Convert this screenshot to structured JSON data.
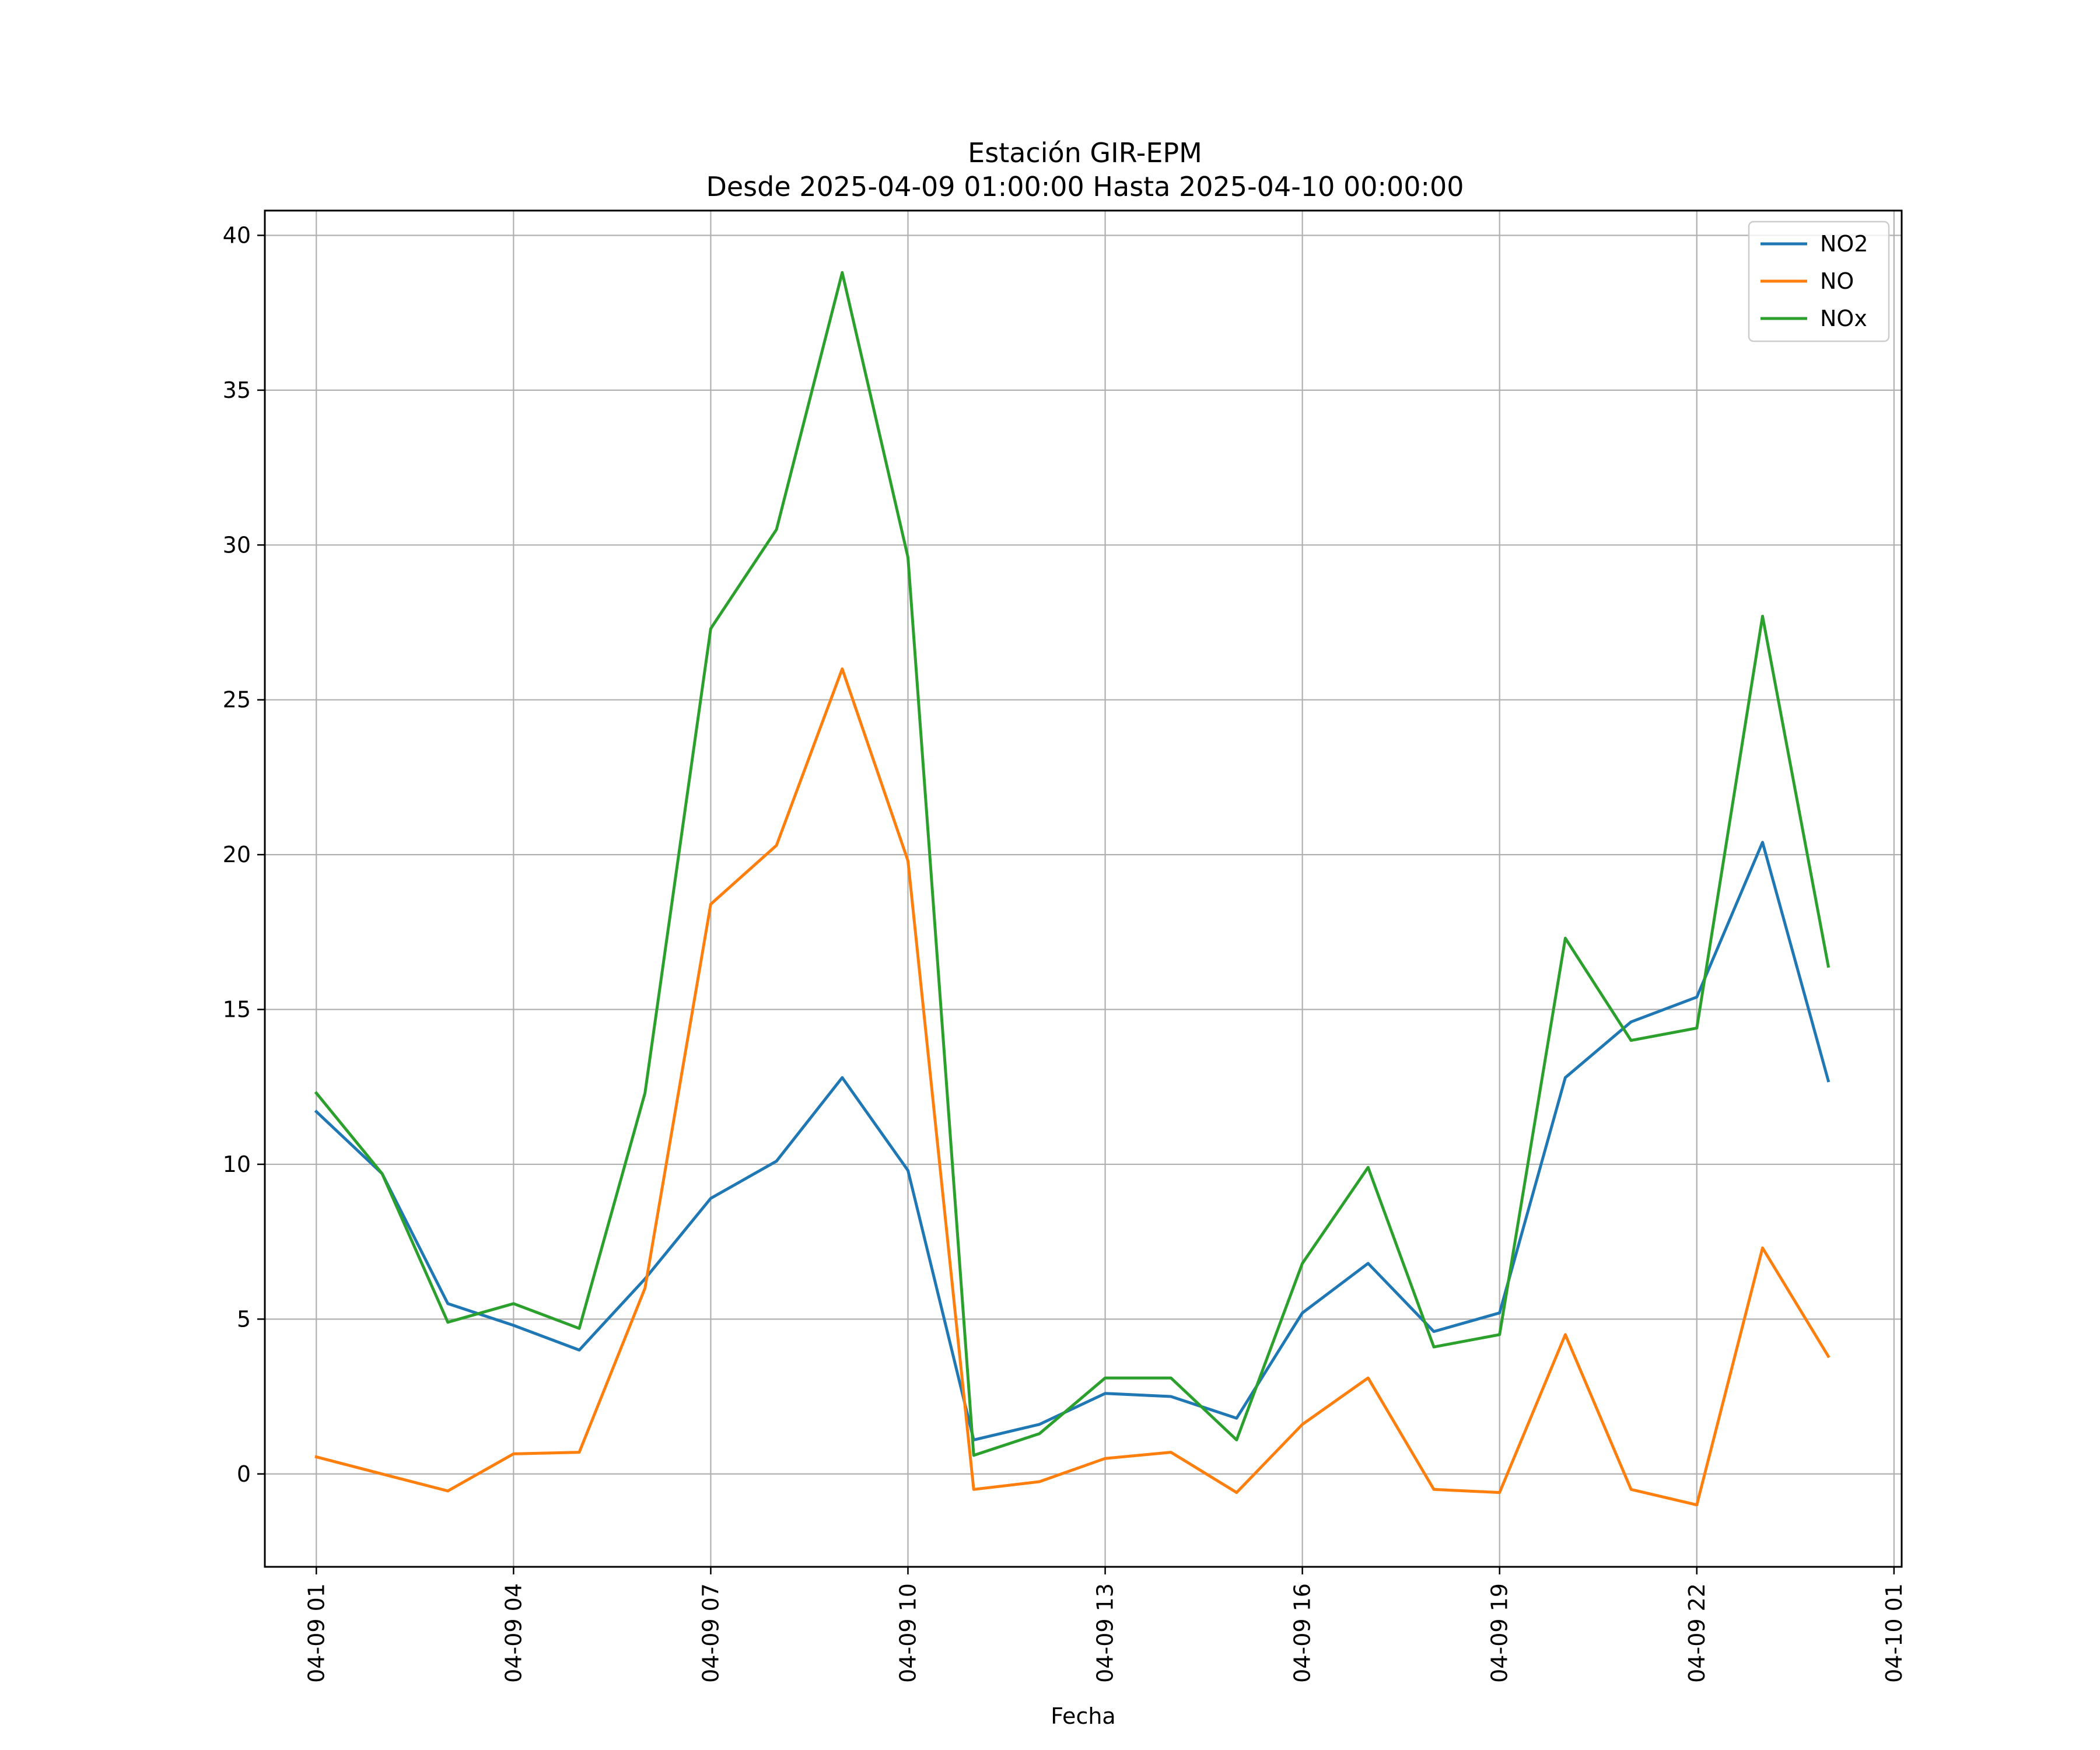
{
  "chart_data": {
    "type": "line",
    "title_line1": "Estación GIR-EPM",
    "title_line2": "Desde 2025-04-09 01:00:00 Hasta 2025-04-10 00:00:00",
    "xlabel": "Fecha",
    "ylabel": "",
    "x_start": "2025-04-09 01:00",
    "x_step": "1 hour",
    "xlim": [
      "2025-04-09 00:13",
      "2025-04-10 01:07"
    ],
    "ylim": [
      -3.0,
      40.8
    ],
    "x_ticks": [
      "04-09 01",
      "04-09 04",
      "04-09 07",
      "04-09 10",
      "04-09 13",
      "04-09 16",
      "04-09 19",
      "04-09 22",
      "04-10 01"
    ],
    "y_ticks": [
      "0",
      "5",
      "10",
      "15",
      "20",
      "25",
      "30",
      "35",
      "40"
    ],
    "grid": true,
    "legend_position": "top-right",
    "series": [
      {
        "name": "NO2",
        "color": "#1f77b4",
        "values": [
          11.7,
          9.7,
          5.5,
          4.8,
          4.0,
          6.3,
          8.9,
          10.1,
          12.8,
          9.8,
          1.1,
          1.6,
          2.6,
          2.5,
          1.8,
          5.2,
          6.8,
          4.6,
          5.2,
          12.8,
          14.6,
          15.4,
          20.4,
          12.7
        ]
      },
      {
        "name": "NO",
        "color": "#ff7f0e",
        "values": [
          0.55,
          0.0,
          -0.55,
          0.65,
          0.7,
          6.0,
          18.4,
          20.3,
          26.0,
          19.8,
          -0.5,
          -0.25,
          0.5,
          0.7,
          -0.6,
          1.6,
          3.1,
          -0.5,
          -0.6,
          4.5,
          -0.5,
          -1.0,
          7.3,
          3.8
        ]
      },
      {
        "name": "NOx",
        "color": "#2ca02c",
        "values": [
          12.3,
          9.7,
          4.9,
          5.5,
          4.7,
          12.3,
          27.3,
          30.5,
          38.8,
          29.6,
          0.6,
          1.3,
          3.1,
          3.1,
          1.1,
          6.8,
          9.9,
          4.1,
          4.5,
          17.3,
          14.0,
          14.4,
          27.7,
          16.4
        ]
      }
    ]
  }
}
